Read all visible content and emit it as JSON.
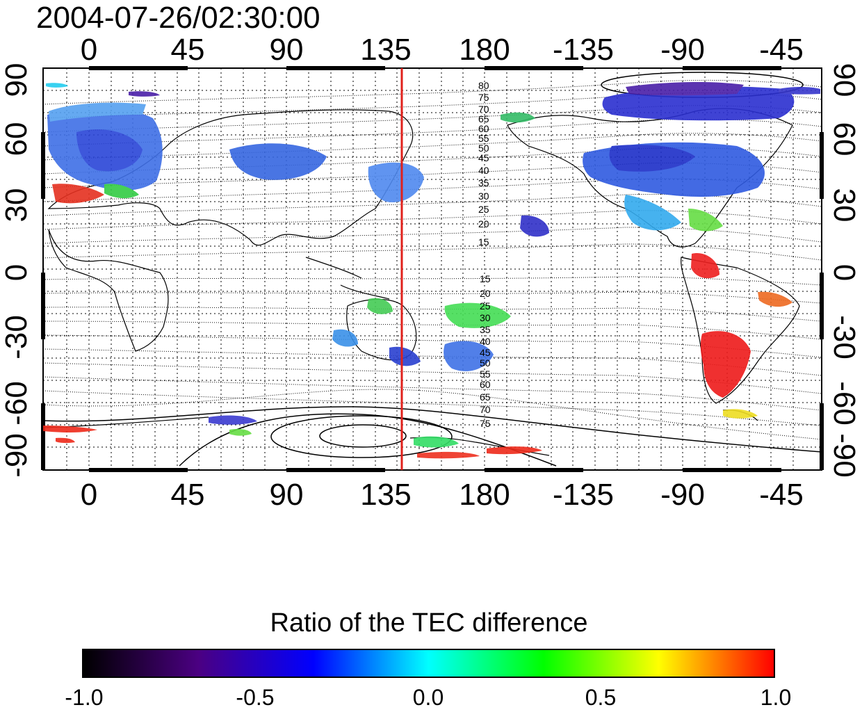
{
  "title": "2004-07-26/02:30:00",
  "map": {
    "x_tick_labels": [
      "0",
      "45",
      "90",
      "135",
      "180",
      "-135",
      "-90",
      "-45"
    ],
    "y_tick_labels": [
      "90",
      "60",
      "30",
      "0",
      "-30",
      "-60",
      "-90"
    ],
    "marker_line_longitude": 141,
    "marker_line_color": "#e0201b",
    "contour_labels_north": [
      "80",
      "75",
      "70",
      "65",
      "60",
      "55",
      "50",
      "45",
      "40",
      "35",
      "30",
      "25",
      "20",
      "15"
    ],
    "contour_labels_south": [
      "15",
      "20",
      "25",
      "30",
      "35",
      "40",
      "45",
      "50",
      "55",
      "60",
      "65",
      "70",
      "75"
    ]
  },
  "colorbar": {
    "title": "Ratio of the TEC difference",
    "tick_labels": [
      "-1.0",
      "-0.5",
      "0.0",
      "0.5",
      "1.0"
    ],
    "stops": [
      "#000000",
      "#4b0082",
      "#0000ff",
      "#00ffff",
      "#00ff00",
      "#ffff00",
      "#ff0000"
    ]
  }
}
